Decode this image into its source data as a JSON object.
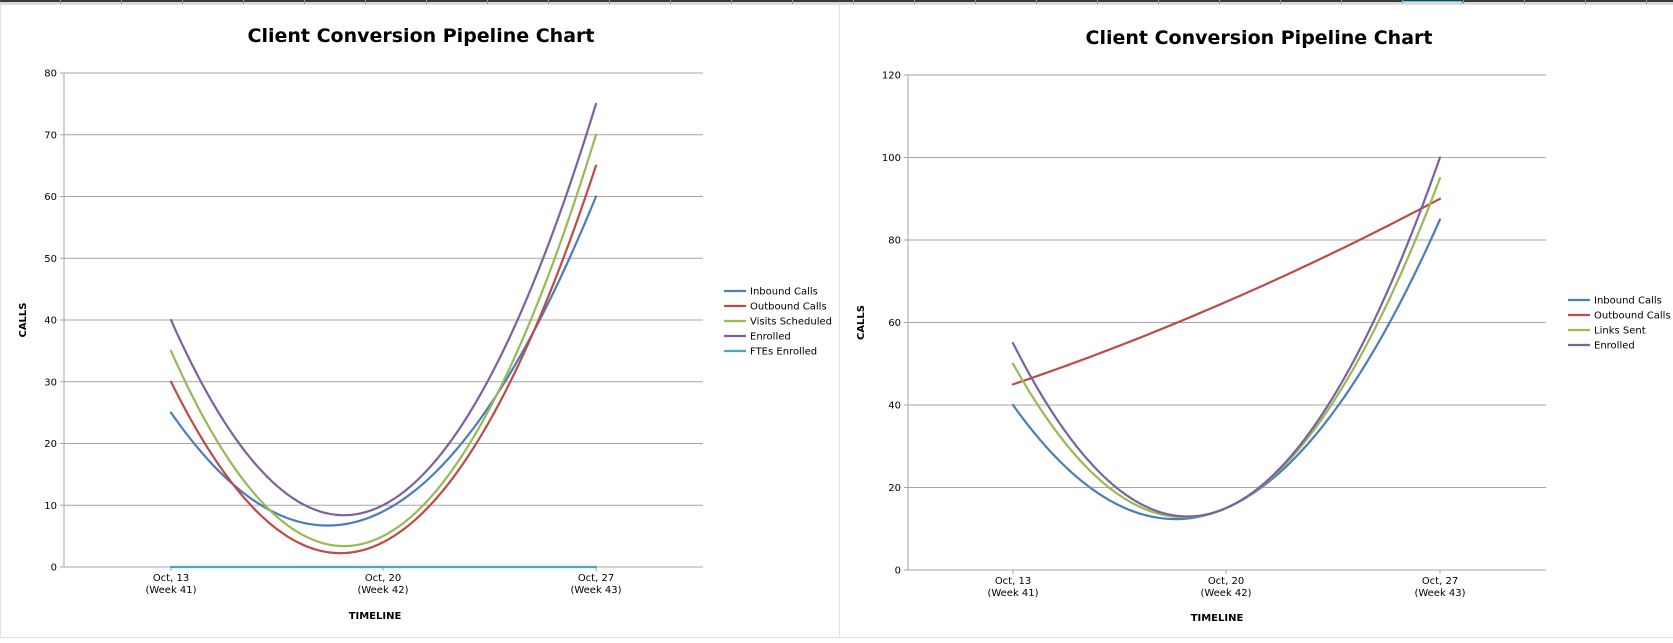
{
  "chart_data": [
    {
      "type": "line",
      "title": "Client Conversion Pipeline Chart",
      "xlabel": "TIMELINE",
      "ylabel": "CALLS",
      "categories": [
        {
          "line1": "Oct, 13",
          "line2": "(Week 41)"
        },
        {
          "line1": "Oct, 20",
          "line2": "(Week 42)"
        },
        {
          "line1": "Oct, 27",
          "line2": "(Week 43)"
        }
      ],
      "ylim": [
        0,
        80
      ],
      "yticks": [
        "0",
        "10",
        "20",
        "30",
        "40",
        "50",
        "60",
        "70",
        "80"
      ],
      "grid": true,
      "legend_position": "right",
      "smooth": true,
      "series": [
        {
          "name": "Inbound Calls",
          "color": "#4a7ebb",
          "values": [
            25,
            9,
            60
          ]
        },
        {
          "name": "Outbound Calls",
          "color": "#be4b48",
          "values": [
            30,
            4,
            65
          ]
        },
        {
          "name": "Visits Scheduled",
          "color": "#98b954",
          "values": [
            35,
            5,
            70
          ]
        },
        {
          "name": "Enrolled",
          "color": "#7d60a0",
          "values": [
            40,
            10,
            75
          ]
        },
        {
          "name": "FTEs Enrolled",
          "color": "#46aac5",
          "values": [
            0,
            0,
            0
          ]
        }
      ]
    },
    {
      "type": "line",
      "title": "Client Conversion Pipeline Chart",
      "xlabel": "TIMELINE",
      "ylabel": "CALLS",
      "categories": [
        {
          "line1": "Oct, 13",
          "line2": "(Week 41)"
        },
        {
          "line1": "Oct, 20",
          "line2": "(Week 42)"
        },
        {
          "line1": "Oct, 27",
          "line2": "(Week 43)"
        }
      ],
      "ylim": [
        0,
        120
      ],
      "yticks": [
        "0",
        "20",
        "40",
        "60",
        "80",
        "100",
        "120"
      ],
      "grid": true,
      "legend_position": "right",
      "smooth": true,
      "series": [
        {
          "name": "Inbound Calls",
          "color": "#4a7ebb",
          "values": [
            40,
            15,
            85
          ]
        },
        {
          "name": "Outbound Calls",
          "color": "#be4b48",
          "values": [
            45,
            65,
            90
          ]
        },
        {
          "name": "Links Sent",
          "color": "#98b954",
          "values": [
            50,
            15,
            95
          ]
        },
        {
          "name": "Enrolled",
          "color": "#7d60a0",
          "values": [
            55,
            15,
            100
          ]
        }
      ]
    }
  ]
}
